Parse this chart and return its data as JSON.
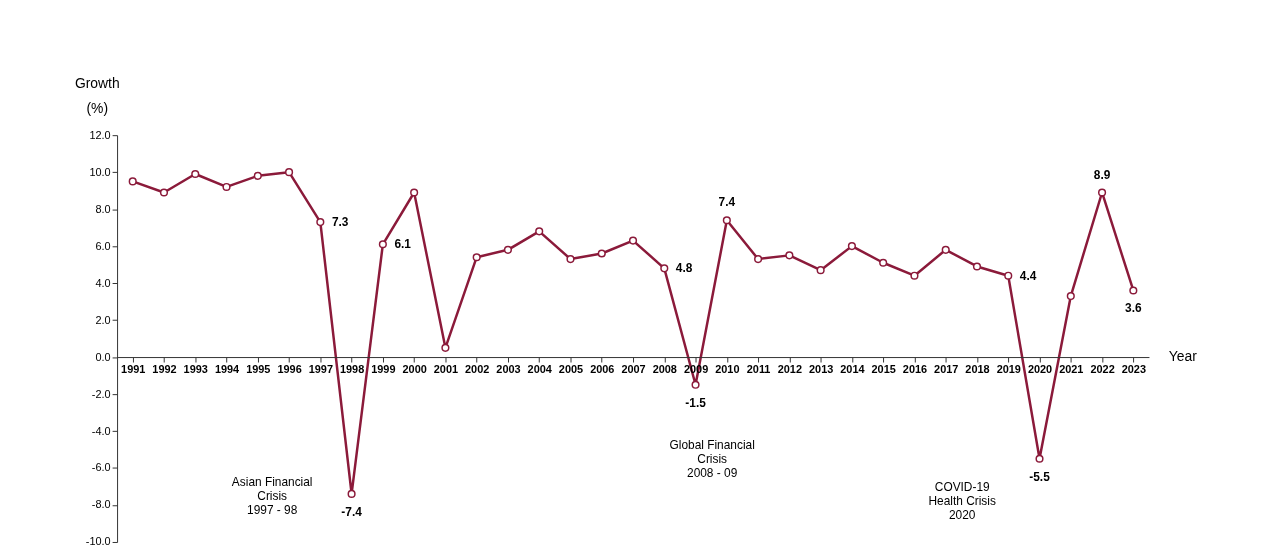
{
  "chart_data": {
    "type": "line",
    "ylabel": "Growth\n(%)",
    "xlabel": "Year",
    "categories": [
      "1991",
      "1992",
      "1993",
      "1994",
      "1995",
      "1996",
      "1997",
      "1998",
      "1999",
      "2000",
      "2001",
      "2002",
      "2003",
      "2004",
      "2005",
      "2006",
      "2007",
      "2008",
      "2009",
      "2010",
      "2011",
      "2012",
      "2013",
      "2014",
      "2015",
      "2016",
      "2017",
      "2018",
      "2019",
      "2020",
      "2021",
      "2022",
      "2023"
    ],
    "series": [
      {
        "color": "#8b1a3a",
        "values": [
          9.5,
          8.9,
          9.9,
          9.2,
          9.8,
          10.0,
          7.3,
          -7.4,
          6.1,
          8.9,
          0.5,
          5.4,
          5.8,
          6.8,
          5.3,
          5.6,
          6.3,
          4.8,
          -1.5,
          7.4,
          5.3,
          5.5,
          4.7,
          6.0,
          5.1,
          4.4,
          5.8,
          4.9,
          4.4,
          -5.5,
          3.3,
          8.9,
          3.6
        ],
        "value_labels": [
          null,
          null,
          null,
          null,
          null,
          null,
          "7.3",
          "-7.4",
          "6.1",
          null,
          null,
          null,
          null,
          null,
          null,
          null,
          null,
          "4.8",
          "-1.5",
          "7.4",
          null,
          null,
          null,
          null,
          null,
          null,
          null,
          null,
          "4.4",
          "-5.5",
          null,
          "8.9",
          "3.6"
        ]
      }
    ],
    "ylim": [
      -10,
      12
    ],
    "yticks": [
      {
        "value": -10,
        "label": "-10.0"
      },
      {
        "value": -8,
        "label": "-8.0"
      },
      {
        "value": -6,
        "label": "-6.0"
      },
      {
        "value": -4,
        "label": "-4.0"
      },
      {
        "value": -2,
        "label": "-2.0"
      },
      {
        "value": 0,
        "label": "0.0"
      },
      {
        "value": 2,
        "label": "2.0"
      },
      {
        "value": 4,
        "label": "4.0"
      },
      {
        "value": 6,
        "label": "6.0"
      },
      {
        "value": 8,
        "label": "8.0"
      },
      {
        "value": 10,
        "label": "10.0"
      },
      {
        "value": 12,
        "label": "12.0"
      }
    ],
    "annotations": [
      "Asian Financial\nCrisis\n1997 - 98",
      "Global Financial\nCrisis\n2008 - 09",
      "COVID-19\nHealth Crisis\n2020"
    ],
    "marker": "circle",
    "grid": false,
    "line_style": "solid"
  }
}
